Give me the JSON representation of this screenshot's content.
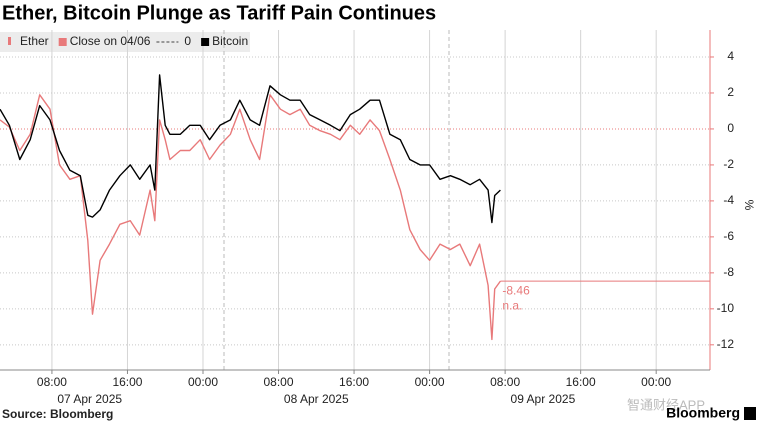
{
  "chart_data": {
    "type": "line",
    "title": "Ether, Bitcoin Plunge as Tariff Pain Continues",
    "y_label": "%",
    "source": "Source: Bloomberg",
    "brand": "Bloomberg",
    "watermark": "智通财经APP",
    "x": [
      2.5,
      3.5,
      4.6,
      5.7,
      6.7,
      7.8,
      8.8,
      9.9,
      11.0,
      11.8,
      12.3,
      13.1,
      14.1,
      15.2,
      16.3,
      17.3,
      18.4,
      18.9,
      19.4,
      20.0,
      20.5,
      21.6,
      22.6,
      23.7,
      24.7,
      25.8,
      26.9,
      27.9,
      29.0,
      30.0,
      31.1,
      32.2,
      33.2,
      34.3,
      35.3,
      36.4,
      37.5,
      38.5,
      39.6,
      40.6,
      41.7,
      42.7,
      43.8,
      44.9,
      45.9,
      47.0,
      48.0,
      49.1,
      50.2,
      51.2,
      52.3,
      53.3,
      54.2,
      54.6,
      54.9,
      55.5
    ],
    "series": [
      {
        "name": "Ether",
        "color": "#e8797a",
        "values": [
          0.5,
          0.1,
          -1.2,
          -0.3,
          1.9,
          1.1,
          -2.0,
          -2.8,
          -2.6,
          -6.2,
          -10.3,
          -7.3,
          -6.4,
          -5.3,
          -5.1,
          -5.9,
          -3.4,
          -5.1,
          0.5,
          -0.6,
          -1.7,
          -1.2,
          -1.2,
          -0.6,
          -1.7,
          -0.9,
          -0.3,
          1.1,
          -0.6,
          -1.7,
          1.9,
          1.1,
          0.8,
          1.1,
          0.2,
          -0.1,
          -0.3,
          -0.6,
          0.2,
          -0.3,
          0.5,
          -0.1,
          -1.7,
          -3.4,
          -5.6,
          -6.7,
          -7.3,
          -6.4,
          -6.7,
          -6.4,
          -7.6,
          -6.4,
          -8.7,
          -11.7,
          -8.9,
          -8.46
        ]
      },
      {
        "name": "Bitcoin",
        "color": "#000000",
        "values": [
          1.1,
          0.2,
          -1.7,
          -0.6,
          1.3,
          0.5,
          -1.2,
          -2.3,
          -2.6,
          -4.8,
          -4.9,
          -4.5,
          -3.4,
          -2.6,
          -2.0,
          -2.8,
          -2.0,
          -3.4,
          3.0,
          0.2,
          -0.3,
          -0.3,
          0.2,
          0.2,
          -0.6,
          0.2,
          0.5,
          1.6,
          0.5,
          0.2,
          2.4,
          1.9,
          1.6,
          1.6,
          0.8,
          0.5,
          0.2,
          -0.1,
          0.8,
          1.1,
          1.6,
          1.6,
          -0.3,
          -0.6,
          -1.7,
          -2.0,
          -2.0,
          -2.8,
          -2.6,
          -2.8,
          -3.1,
          -2.8,
          -3.4,
          -5.2,
          -3.7,
          -3.4
        ]
      }
    ],
    "reference_line": {
      "name": "Close on 04/06",
      "value": 0
    },
    "last_labels": [
      "-8.46",
      "n.a."
    ],
    "xlim": [
      2.5,
      77.7
    ],
    "xticks": [
      {
        "value": 8,
        "label": "08:00"
      },
      {
        "value": 16,
        "label": "16:00"
      },
      {
        "value": 24,
        "label": "00:00"
      },
      {
        "value": 32,
        "label": "08:00"
      },
      {
        "value": 40,
        "label": "16:00"
      },
      {
        "value": 48,
        "label": "00:00"
      },
      {
        "value": 56,
        "label": "08:00"
      },
      {
        "value": 64,
        "label": "16:00"
      },
      {
        "value": 72,
        "label": "00:00"
      }
    ],
    "date_labels": [
      {
        "value": 12,
        "label": "07 Apr 2025"
      },
      {
        "value": 36,
        "label": "08 Apr 2025"
      },
      {
        "value": 60,
        "label": "09 Apr 2025"
      }
    ],
    "ylim": [
      -13.4,
      5.5
    ],
    "yticks": [
      4,
      2,
      0,
      -2,
      -4,
      -6,
      -8,
      -10,
      -12
    ],
    "grid": true,
    "legend": "top-left"
  }
}
